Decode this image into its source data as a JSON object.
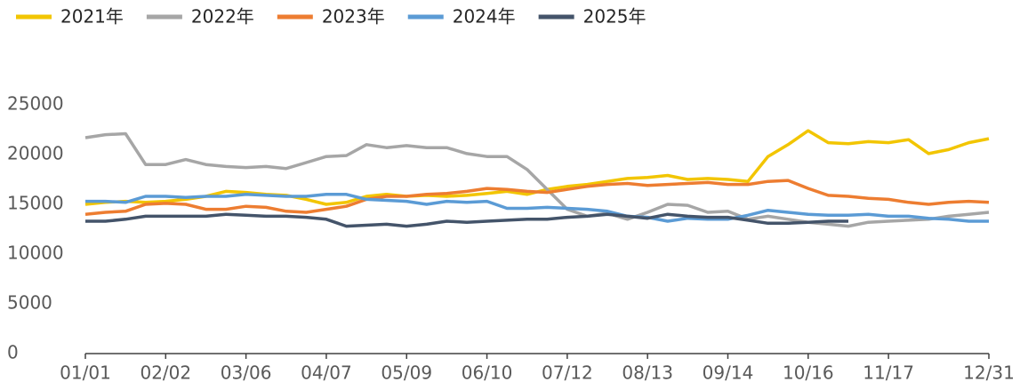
{
  "chart_data": {
    "type": "line",
    "categories": [
      "01/01",
      null,
      null,
      null,
      "02/02",
      null,
      null,
      null,
      "03/06",
      null,
      null,
      null,
      "04/07",
      null,
      null,
      null,
      "05/09",
      null,
      null,
      null,
      "06/10",
      null,
      null,
      null,
      "07/12",
      null,
      null,
      null,
      "08/13",
      null,
      null,
      null,
      "09/14",
      null,
      null,
      null,
      "10/16",
      null,
      null,
      null,
      "11/17",
      null,
      null,
      null,
      null,
      "12/31"
    ],
    "series": [
      {
        "name": "2021年",
        "color": "#f2c500",
        "values": [
          15000,
          15200,
          15300,
          15200,
          15300,
          15500,
          15800,
          16300,
          16200,
          16000,
          15900,
          15500,
          15000,
          15200,
          15800,
          16000,
          15800,
          15900,
          15800,
          15900,
          16100,
          16300,
          16000,
          16500,
          16800,
          17000,
          17300,
          17600,
          17700,
          17900,
          17500,
          17600,
          17500,
          17300,
          19800,
          21000,
          22400,
          21200,
          21100,
          21300,
          21200,
          21500,
          20100,
          20500,
          21200,
          21600
        ]
      },
      {
        "name": "2022年",
        "color": "#a6a6a6",
        "values": [
          21700,
          22000,
          22100,
          19000,
          19000,
          19500,
          19000,
          18800,
          18700,
          18800,
          18600,
          19200,
          19800,
          19900,
          21000,
          20700,
          20900,
          20700,
          20700,
          20100,
          19800,
          19800,
          18500,
          16500,
          14500,
          13800,
          14100,
          13500,
          14200,
          15000,
          14900,
          14200,
          14300,
          13500,
          13800,
          13500,
          13200,
          13000,
          12800,
          13200,
          13300,
          13400,
          13500,
          13800,
          14000,
          14200
        ]
      },
      {
        "name": "2023年",
        "color": "#ed7d31",
        "values": [
          14000,
          14200,
          14300,
          15000,
          15100,
          15000,
          14500,
          14500,
          14800,
          14700,
          14300,
          14200,
          14500,
          14800,
          15500,
          15800,
          15800,
          16000,
          16100,
          16300,
          16600,
          16500,
          16300,
          16200,
          16500,
          16800,
          17000,
          17100,
          16900,
          17000,
          17100,
          17200,
          17000,
          17000,
          17300,
          17400,
          16600,
          15900,
          15800,
          15600,
          15500,
          15200,
          15000,
          15200,
          15300,
          15200
        ]
      },
      {
        "name": "2024年",
        "color": "#5b9bd5",
        "values": [
          15300,
          15300,
          15200,
          15800,
          15800,
          15700,
          15800,
          15800,
          16000,
          15900,
          15800,
          15800,
          16000,
          16000,
          15500,
          15400,
          15300,
          15000,
          15300,
          15200,
          15300,
          14600,
          14600,
          14700,
          14600,
          14500,
          14300,
          13800,
          13700,
          13300,
          13600,
          13500,
          13500,
          13900,
          14400,
          14200,
          14000,
          13900,
          13900,
          14000,
          13800,
          13800,
          13600,
          13500,
          13300,
          13300
        ]
      },
      {
        "name": "2025年",
        "color": "#44546a",
        "values": [
          13300,
          13300,
          13500,
          13800,
          13800,
          13800,
          13800,
          14000,
          13900,
          13800,
          13800,
          13700,
          13500,
          12800,
          12900,
          13000,
          12800,
          13000,
          13300,
          13200,
          13300,
          13400,
          13500,
          13500,
          13700,
          13800,
          14000,
          13800,
          13600,
          14000,
          13800,
          13700,
          13700,
          13400,
          13100,
          13100,
          13200,
          13300,
          13300,
          null,
          null,
          null,
          null,
          null,
          null,
          null
        ]
      }
    ],
    "ylim": [
      0,
      25000
    ],
    "yticks": [
      0,
      5000,
      10000,
      15000,
      20000,
      25000
    ],
    "legend": "top-left"
  }
}
